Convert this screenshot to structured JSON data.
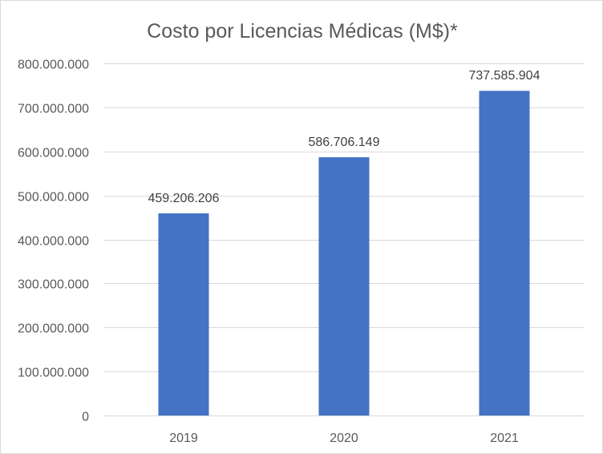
{
  "chart_data": {
    "type": "bar",
    "title": "Costo por Licencias Médicas (M$)*",
    "xlabel": "",
    "ylabel": "",
    "categories": [
      "2019",
      "2020",
      "2021"
    ],
    "values": [
      459206206,
      586706149,
      737585904
    ],
    "data_labels": [
      "459.206.206",
      "586.706.149",
      "737.585.904"
    ],
    "ylim": [
      0,
      800000000
    ],
    "yticks": [
      0,
      100000000,
      200000000,
      300000000,
      400000000,
      500000000,
      600000000,
      700000000,
      800000000
    ],
    "ytick_labels": [
      "0",
      "100.000.000",
      "200.000.000",
      "300.000.000",
      "400.000.000",
      "500.000.000",
      "600.000.000",
      "700.000.000",
      "800.000.000"
    ],
    "grid": true,
    "legend": "none",
    "bar_color": "#4472c4",
    "grid_color": "#d9d9d9",
    "text_color": "#595959"
  }
}
